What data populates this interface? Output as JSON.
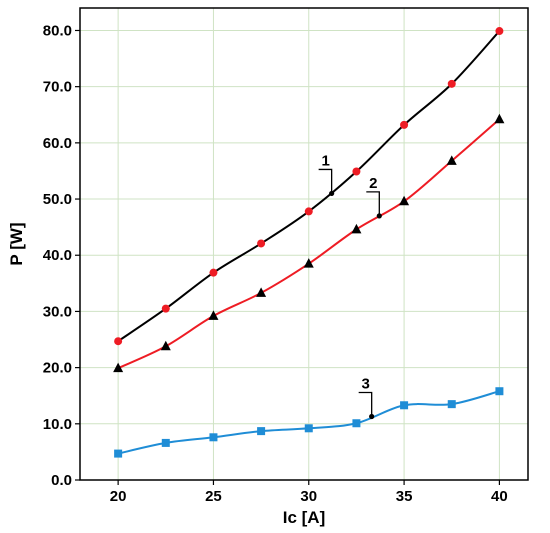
{
  "chart_data": {
    "type": "line",
    "xlabel": "Ic [A]",
    "ylabel": "P [W]",
    "xlim": [
      18,
      41.5
    ],
    "ylim": [
      0,
      84
    ],
    "xticks": [
      20,
      25,
      30,
      35,
      40
    ],
    "yticks": [
      0,
      10,
      20,
      30,
      40,
      50,
      60,
      70,
      80
    ],
    "xtick_labels": [
      "20",
      "25",
      "30",
      "35",
      "40"
    ],
    "ytick_labels": [
      "0.0",
      "10.0",
      "20.0",
      "30.0",
      "40.0",
      "50.0",
      "60.0",
      "70.0",
      "80.0"
    ],
    "grid": true,
    "legend": "none",
    "series": [
      {
        "line_color": "#000000",
        "marker": "circle",
        "marker_color": "#ee1c24",
        "x": [
          20,
          22.5,
          25,
          27.5,
          30,
          32.5,
          35,
          37.5,
          40
        ],
        "y": [
          24.7,
          30.5,
          36.9,
          42.1,
          47.8,
          54.9,
          63.2,
          70.5,
          79.9
        ]
      },
      {
        "line_color": "#ee1c24",
        "marker": "triangle",
        "marker_color": "#000000",
        "x": [
          20,
          22.5,
          25,
          27.5,
          30,
          32.5,
          35,
          37.5,
          40
        ],
        "y": [
          19.9,
          23.8,
          29.2,
          33.3,
          38.5,
          44.6,
          49.6,
          56.8,
          64.2
        ]
      },
      {
        "line_color": "#1f8dd6",
        "marker": "square",
        "marker_color": "#1f8dd6",
        "x": [
          20,
          22.5,
          25,
          27.5,
          30,
          32.5,
          35,
          37.5,
          40
        ],
        "y": [
          4.7,
          6.6,
          7.6,
          8.7,
          9.2,
          10.1,
          13.3,
          13.5,
          15.8
        ]
      }
    ],
    "annotations": [
      {
        "text": "1",
        "series": 0,
        "x": 31.2,
        "y": 51.0
      },
      {
        "text": "2",
        "series": 1,
        "x": 33.7,
        "y": 47.0
      },
      {
        "text": "3",
        "series": 2,
        "x": 33.3,
        "y": 11.3
      }
    ]
  }
}
